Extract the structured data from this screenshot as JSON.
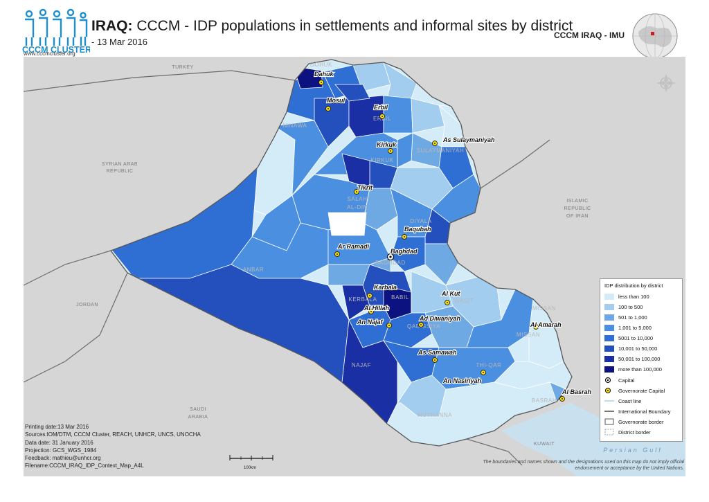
{
  "header": {
    "logo_text": "CCCM CLUSTER",
    "logo_url": "www.cccmcluster.org",
    "title_bold": "IRAQ:",
    "title_rest": " CCCM - IDP populations in settlements and informal sites by district",
    "date": "- 13 Mar 2016",
    "agency": "CCCM IRAQ - IMU"
  },
  "countries": {
    "turkey": "TURKEY",
    "syria_line1": "SYRIAN ARAB",
    "syria_line2": "REPUBLIC",
    "iran_line1": "ISLAMIC",
    "iran_line2": "REPUBLIC",
    "iran_line3": "OF IRAN",
    "jordan": "JORDAN",
    "saudi_line1": "SAUDI",
    "saudi_line2": "ARABIA",
    "kuwait": "KUWAIT",
    "gulf": "Persian Gulf"
  },
  "governorates": {
    "dohuk": "DOHUK",
    "ninawa": "NINAWA",
    "erbil": "ERBIL",
    "sulaymaniyah": "SULAYMANIYAH",
    "kirkuk": "KIRKUK",
    "salah_al_din_1": "SALAH",
    "salah_al_din_2": "AL-DIN",
    "diyala": "DIYALA",
    "anbar": "ANBAR",
    "baghdad": "BAGHDAD",
    "kerbala": "KERBALA",
    "babil": "BABIL",
    "wasit": "WASIT",
    "missan_1": "MISSAN",
    "missan_2": "MISSAN",
    "qadissiya": "QADISSIYA",
    "najaf": "NAJAF",
    "thi_qar": "THI-QAR",
    "muthanna": "MUTHANNA",
    "basrah": "BASRAH"
  },
  "cities": {
    "duhok": "Dahuk",
    "mosul": "Mosul",
    "erbil": "Erbil",
    "sulaymaniyah": "As Sulaymaniyah",
    "kirkuk": "Kirkuk",
    "tikrit": "Tikrit",
    "baqubah": "Baqubah",
    "ramadi": "Ar Ramadi",
    "baghdad": "Baghdad",
    "karbala": "Karbala",
    "hillah": "Al Hillah",
    "kut": "Al Kut",
    "diwaniyah": "Ad Diwaniyah",
    "najaf": "An Najaf",
    "samawah": "As Samawah",
    "nasiriyah": "An Nasiriyah",
    "amarah": "Al Amarah",
    "basrah": "Al Basrah"
  },
  "legend": {
    "title": "IDP distribution by district",
    "classes": [
      {
        "label": "less than 100",
        "color": "#d4ecf8"
      },
      {
        "label": "100 to 500",
        "color": "#a3cdee"
      },
      {
        "label": "501 to 1,000",
        "color": "#6fa9e3"
      },
      {
        "label": "1,001 to 5,000",
        "color": "#4a8fe0"
      },
      {
        "label": "5001 to 10,000",
        "color": "#2f6fd3"
      },
      {
        "label": "10,001 to 50,000",
        "color": "#2450bd"
      },
      {
        "label": "50,001 to 100,000",
        "color": "#1a2fa3"
      },
      {
        "label": "more than 100,000",
        "color": "#0c1380"
      }
    ],
    "symbols": {
      "capital": "Capital",
      "gov_capital": "Governorate Capital",
      "coast": "Coast line",
      "intl": "International Boundary",
      "gov_border": "Governorate border",
      "district_border": "District border"
    }
  },
  "meta": {
    "printing": "Printing date:13 Mar 2016",
    "sources": "Sources:IOM/DTM, CCCM Cluster, REACH, UNHCR, UNCS, UNOCHA",
    "data_date": "Data date: 31 January 2016",
    "projection": "Projection: GCS_WGS_1984",
    "feedback": "Feedback: mathieu@unhcr.org",
    "filename": "Filename:CCCM_IRAQ_IDP_Context_Map_A4L"
  },
  "scale": "100km",
  "disclaimer": "The boundaries and names shown and the designations used on this map do not imply official endorsement or acceptance by the United Nations."
}
